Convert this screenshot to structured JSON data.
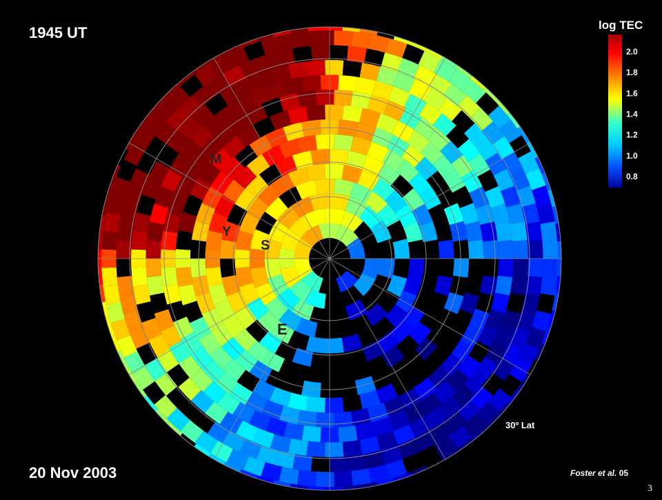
{
  "header": {
    "time": "1945 UT",
    "date": "20 Nov 2003"
  },
  "colorbar": {
    "title": "log TEC",
    "ticks": [
      "2.0",
      "1.8",
      "1.6",
      "1.4",
      "1.2",
      "1.0",
      "0.8"
    ]
  },
  "map": {
    "latitude_label": "30º Lat",
    "region_labels": [
      "M",
      "Y",
      "S",
      "E"
    ]
  },
  "footer": {
    "credit_authors": "Foster et al.",
    "credit_year": "05",
    "page_number": "3"
  }
}
